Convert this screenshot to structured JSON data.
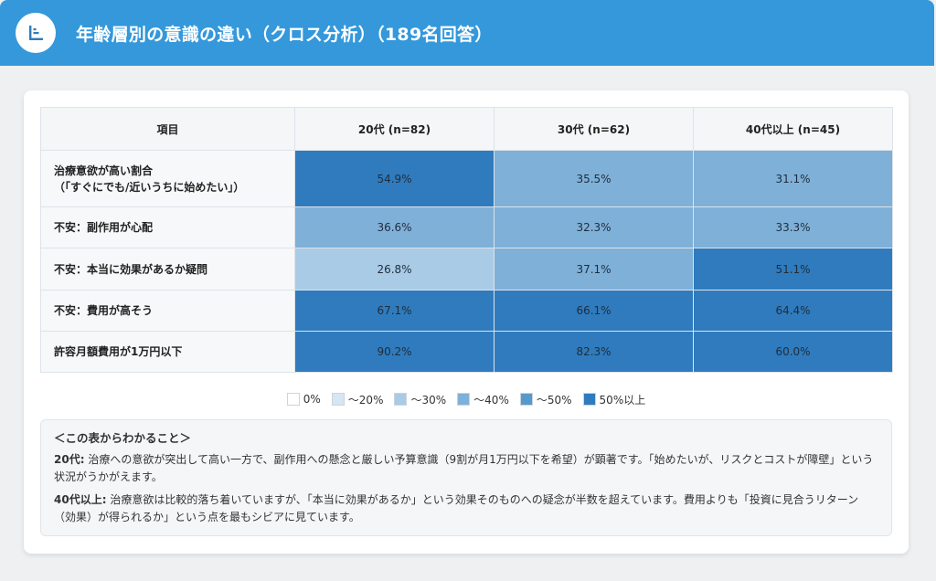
{
  "header": {
    "title": "年齢層別の意識の違い（クロス分析）（189名回答）",
    "icon": "bar-chart-icon"
  },
  "chart_data": {
    "type": "heatmap",
    "corner_label": "項目",
    "columns": [
      "20代 (n=82)",
      "30代 (n=62)",
      "40代以上 (n=45)"
    ],
    "rows": [
      {
        "label": [
          "治療意欲が高い割合",
          "（「すぐにでも/近いうちに始めたい」）"
        ],
        "values": [
          54.9,
          35.5,
          31.1
        ],
        "display": [
          "54.9%",
          "35.5%",
          "31.1%"
        ]
      },
      {
        "label": [
          "不安：副作用が心配"
        ],
        "values": [
          36.6,
          32.3,
          33.3
        ],
        "display": [
          "36.6%",
          "32.3%",
          "33.3%"
        ]
      },
      {
        "label": [
          "不安：本当に効果があるか疑問"
        ],
        "values": [
          26.8,
          37.1,
          51.1
        ],
        "display": [
          "26.8%",
          "37.1%",
          "51.1%"
        ]
      },
      {
        "label": [
          "不安：費用が高そう"
        ],
        "values": [
          67.1,
          66.1,
          64.4
        ],
        "display": [
          "67.1%",
          "66.1%",
          "64.4%"
        ]
      },
      {
        "label": [
          "許容月額費用が1万円以下"
        ],
        "values": [
          90.2,
          82.3,
          60.0
        ],
        "display": [
          "90.2%",
          "82.3%",
          "60.0%"
        ]
      }
    ],
    "legend": [
      {
        "label": "0%",
        "color": "#ffffff"
      },
      {
        "label": "〜20%",
        "color": "#d6e6f3"
      },
      {
        "label": "〜30%",
        "color": "#a9cbe6"
      },
      {
        "label": "〜40%",
        "color": "#7fb0d8"
      },
      {
        "label": "〜50%",
        "color": "#5899cc"
      },
      {
        "label": "50%以上",
        "color": "#2f7bbd"
      }
    ]
  },
  "summary": {
    "title": "＜この表からわかること＞",
    "items": [
      {
        "lead": "20代:",
        "text": "治療への意欲が突出して高い一方で、副作用への懸念と厳しい予算意識（9割が月1万円以下を希望）が顕著です。「始めたいが、リスクとコストが障壁」という状況がうかがえます。"
      },
      {
        "lead": "40代以上:",
        "text": "治療意欲は比較的落ち着いていますが、「本当に効果があるか」という効果そのものへの疑念が半数を超えています。費用よりも「投資に見合うリターン（効果）が得られるか」という点を最もシビアに見ています。"
      }
    ]
  }
}
